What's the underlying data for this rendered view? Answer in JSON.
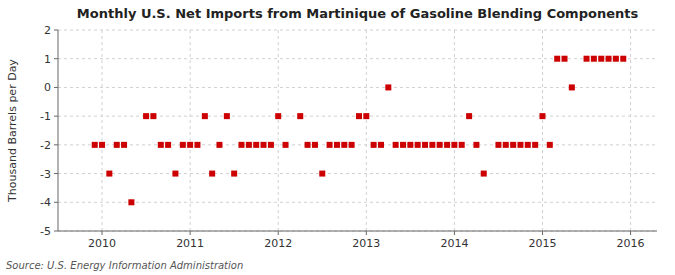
{
  "chart_data": {
    "type": "scatter",
    "title": "Monthly U.S. Net Imports from Martinique of Gasoline Blending Components",
    "ylabel": "Thousand Barrels per Day",
    "source": "Source: U.S. Energy Information Administration",
    "xlim": [
      2009.5,
      2016.3
    ],
    "ylim": [
      -5,
      2
    ],
    "xticks": [
      2010,
      2011,
      2012,
      2013,
      2014,
      2015,
      2016
    ],
    "yticks": [
      -5,
      -4,
      -3,
      -2,
      -1,
      0,
      1,
      2
    ],
    "color": "#cc0000",
    "marker": "square",
    "grid": true,
    "x": [
      2009.917,
      2010.0,
      2010.083,
      2010.167,
      2010.25,
      2010.333,
      2010.5,
      2010.583,
      2010.667,
      2010.75,
      2010.833,
      2010.917,
      2011.0,
      2011.083,
      2011.167,
      2011.25,
      2011.333,
      2011.417,
      2011.5,
      2011.583,
      2011.667,
      2011.75,
      2011.833,
      2011.917,
      2012.0,
      2012.083,
      2012.25,
      2012.333,
      2012.417,
      2012.5,
      2012.583,
      2012.667,
      2012.75,
      2012.833,
      2012.917,
      2013.0,
      2013.083,
      2013.167,
      2013.25,
      2013.333,
      2013.417,
      2013.5,
      2013.583,
      2013.667,
      2013.75,
      2013.833,
      2013.917,
      2014.0,
      2014.083,
      2014.167,
      2014.25,
      2014.333,
      2014.5,
      2014.583,
      2014.667,
      2014.75,
      2014.833,
      2014.917,
      2015.0,
      2015.083,
      2015.167,
      2015.25,
      2015.333,
      2015.5,
      2015.583,
      2015.667,
      2015.75,
      2015.833,
      2015.917
    ],
    "values": [
      -2,
      -2,
      -3,
      -2,
      -2,
      -4,
      -1,
      -1,
      -2,
      -2,
      -3,
      -2,
      -2,
      -2,
      -1,
      -3,
      -2,
      -1,
      -3,
      -2,
      -2,
      -2,
      -2,
      -2,
      -1,
      -2,
      -1,
      -2,
      -2,
      -3,
      -2,
      -2,
      -2,
      -2,
      -1,
      -1,
      -2,
      -2,
      0,
      -2,
      -2,
      -2,
      -2,
      -2,
      -2,
      -2,
      -2,
      -2,
      -2,
      -1,
      -2,
      -3,
      -2,
      -2,
      -2,
      -2,
      -2,
      -2,
      -1,
      -2,
      1,
      1,
      0,
      1,
      1,
      1,
      1,
      1,
      1
    ]
  }
}
